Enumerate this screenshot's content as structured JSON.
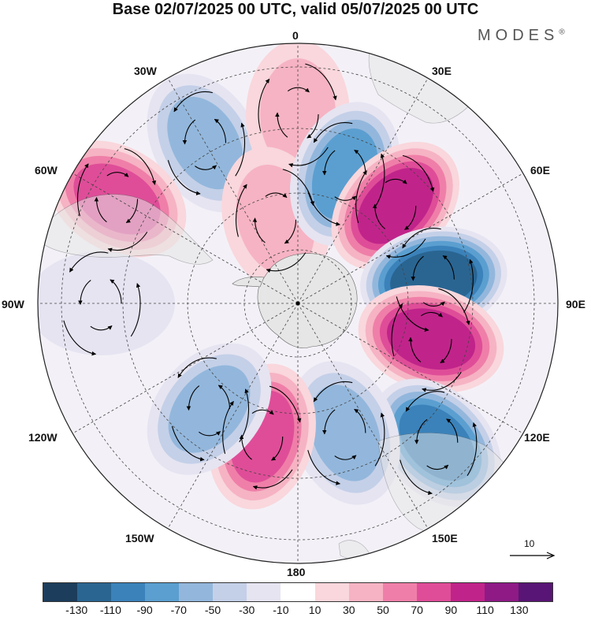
{
  "title": "Base 02/07/2025 00 UTC, valid 05/07/2025 00 UTC",
  "brand": {
    "name": "MODES",
    "mark": "®"
  },
  "longitude_labels": {
    "lon_0": "0",
    "lon_30e": "30E",
    "lon_60e": "60E",
    "lon_90e": "90E",
    "lon_120e": "120E",
    "lon_150e": "150E",
    "lon_180": "180",
    "lon_150w": "150W",
    "lon_120w": "120W",
    "lon_90w": "90W",
    "lon_60w": "60W",
    "lon_30w": "30W"
  },
  "map": {
    "projection": "south-polar-stereographic",
    "background_color": "#ffffff",
    "land_color": "#e6e6e6",
    "anomaly_centers": [
      {
        "lon": "30W",
        "region": "south atlantic",
        "value": -60
      },
      {
        "lon": "60W",
        "region": "south america",
        "value": 90
      },
      {
        "lon": "0",
        "region": "north",
        "value": 50
      },
      {
        "lon": "15W",
        "region": "near pole",
        "value": 50
      },
      {
        "lon": "20E",
        "region": "mid",
        "value": -80
      },
      {
        "lon": "45E",
        "region": "mid",
        "value": 110
      },
      {
        "lon": "80E",
        "region": "mid",
        "value": -130
      },
      {
        "lon": "105E",
        "region": "mid",
        "value": 110
      },
      {
        "lon": "135E",
        "region": "outer",
        "value": -110
      },
      {
        "lon": "160E",
        "region": "mid",
        "value": -70
      },
      {
        "lon": "165W",
        "region": "mid",
        "value": 90
      },
      {
        "lon": "140W",
        "region": "mid",
        "value": -60
      },
      {
        "lon": "90W",
        "region": "outer",
        "value": -30
      }
    ]
  },
  "reference_vector": {
    "label": "10"
  },
  "colorbar": {
    "colors": [
      "#1c3d5c",
      "#2a6592",
      "#3b82ba",
      "#5b9fd0",
      "#93b7dc",
      "#c4d0e8",
      "#e6e4f1",
      "#ffffff",
      "#f9d7dc",
      "#f6b3c3",
      "#ef7fa8",
      "#df4d98",
      "#c0248a",
      "#8f1a86",
      "#591575"
    ],
    "tick_labels": [
      "-130",
      "-110",
      "-90",
      "-70",
      "-50",
      "-30",
      "-10",
      "10",
      "30",
      "50",
      "70",
      "90",
      "110",
      "130"
    ]
  }
}
